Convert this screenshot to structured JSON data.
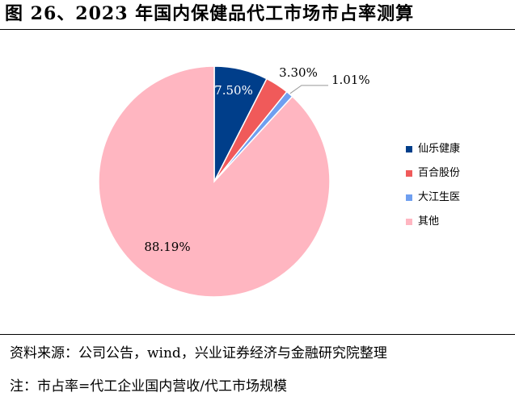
{
  "title": "图 26、2023 年国内保健品代工市场市占率测算",
  "chart_data": {
    "type": "pie",
    "categories": [
      "仙乐健康",
      "百合股份",
      "大江生医",
      "其他"
    ],
    "values": [
      7.5,
      3.3,
      1.01,
      88.19
    ],
    "labels": [
      "7.50%",
      "3.30%",
      "1.01%",
      "88.19%"
    ],
    "colors": [
      "#003e8a",
      "#f05a5a",
      "#6f9ff0",
      "#ffb6c1"
    ],
    "start_angle_deg": 0,
    "direction": "clockwise",
    "legend_position": "right"
  },
  "legend": [
    {
      "label": "仙乐健康",
      "color": "#003e8a"
    },
    {
      "label": "百合股份",
      "color": "#f05a5a"
    },
    {
      "label": "大江生医",
      "color": "#6f9ff0"
    },
    {
      "label": "其他",
      "color": "#ffb6c1"
    }
  ],
  "source": "资料来源：公司公告，wind，兴业证券经济与金融研究院整理",
  "note": "注：市占率=代工企业国内营收/代工市场规模"
}
